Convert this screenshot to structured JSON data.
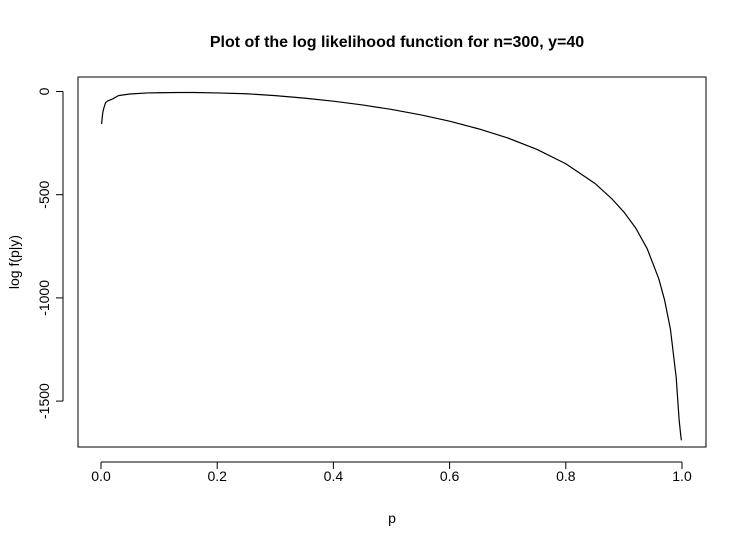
{
  "chart_data": {
    "type": "line",
    "title": "Plot of the log likelihood function for n=300, y=40",
    "xlabel": "p",
    "ylabel": "log f(p|y)",
    "xlim": [
      0,
      1
    ],
    "ylim": [
      -1700,
      0
    ],
    "x_ticks": [
      {
        "value": 0.0,
        "label": "0.0"
      },
      {
        "value": 0.2,
        "label": "0.2"
      },
      {
        "value": 0.4,
        "label": "0.4"
      },
      {
        "value": 0.6,
        "label": "0.6"
      },
      {
        "value": 0.8,
        "label": "0.8"
      },
      {
        "value": 1.0,
        "label": "1.0"
      }
    ],
    "y_ticks": [
      {
        "value": 0,
        "label": "0"
      },
      {
        "value": -500,
        "label": "-500"
      },
      {
        "value": -1000,
        "label": "-1000"
      },
      {
        "value": -1500,
        "label": "-1500"
      }
    ],
    "series": [
      {
        "color": "#000000",
        "x": [
          0.001,
          0.003,
          0.005,
          0.008,
          0.012,
          0.02,
          0.03,
          0.05,
          0.08,
          0.1,
          0.133,
          0.16,
          0.2,
          0.25,
          0.3,
          0.35,
          0.4,
          0.45,
          0.5,
          0.55,
          0.6,
          0.65,
          0.7,
          0.75,
          0.8,
          0.85,
          0.88,
          0.9,
          0.92,
          0.94,
          0.96,
          0.97,
          0.98,
          0.99,
          0.995,
          0.998,
          0.999
        ],
        "y": [
          -157,
          -103,
          -79,
          -53,
          -45,
          -36,
          -20,
          -12,
          -7,
          -6,
          -5,
          -5,
          -7,
          -11,
          -20,
          -32,
          -47,
          -65,
          -87,
          -113,
          -144,
          -181,
          -225,
          -280,
          -350,
          -445,
          -522,
          -584,
          -660,
          -761,
          -907,
          -1010,
          -1150,
          -1385,
          -1590,
          -1670,
          -1690
        ]
      }
    ]
  }
}
